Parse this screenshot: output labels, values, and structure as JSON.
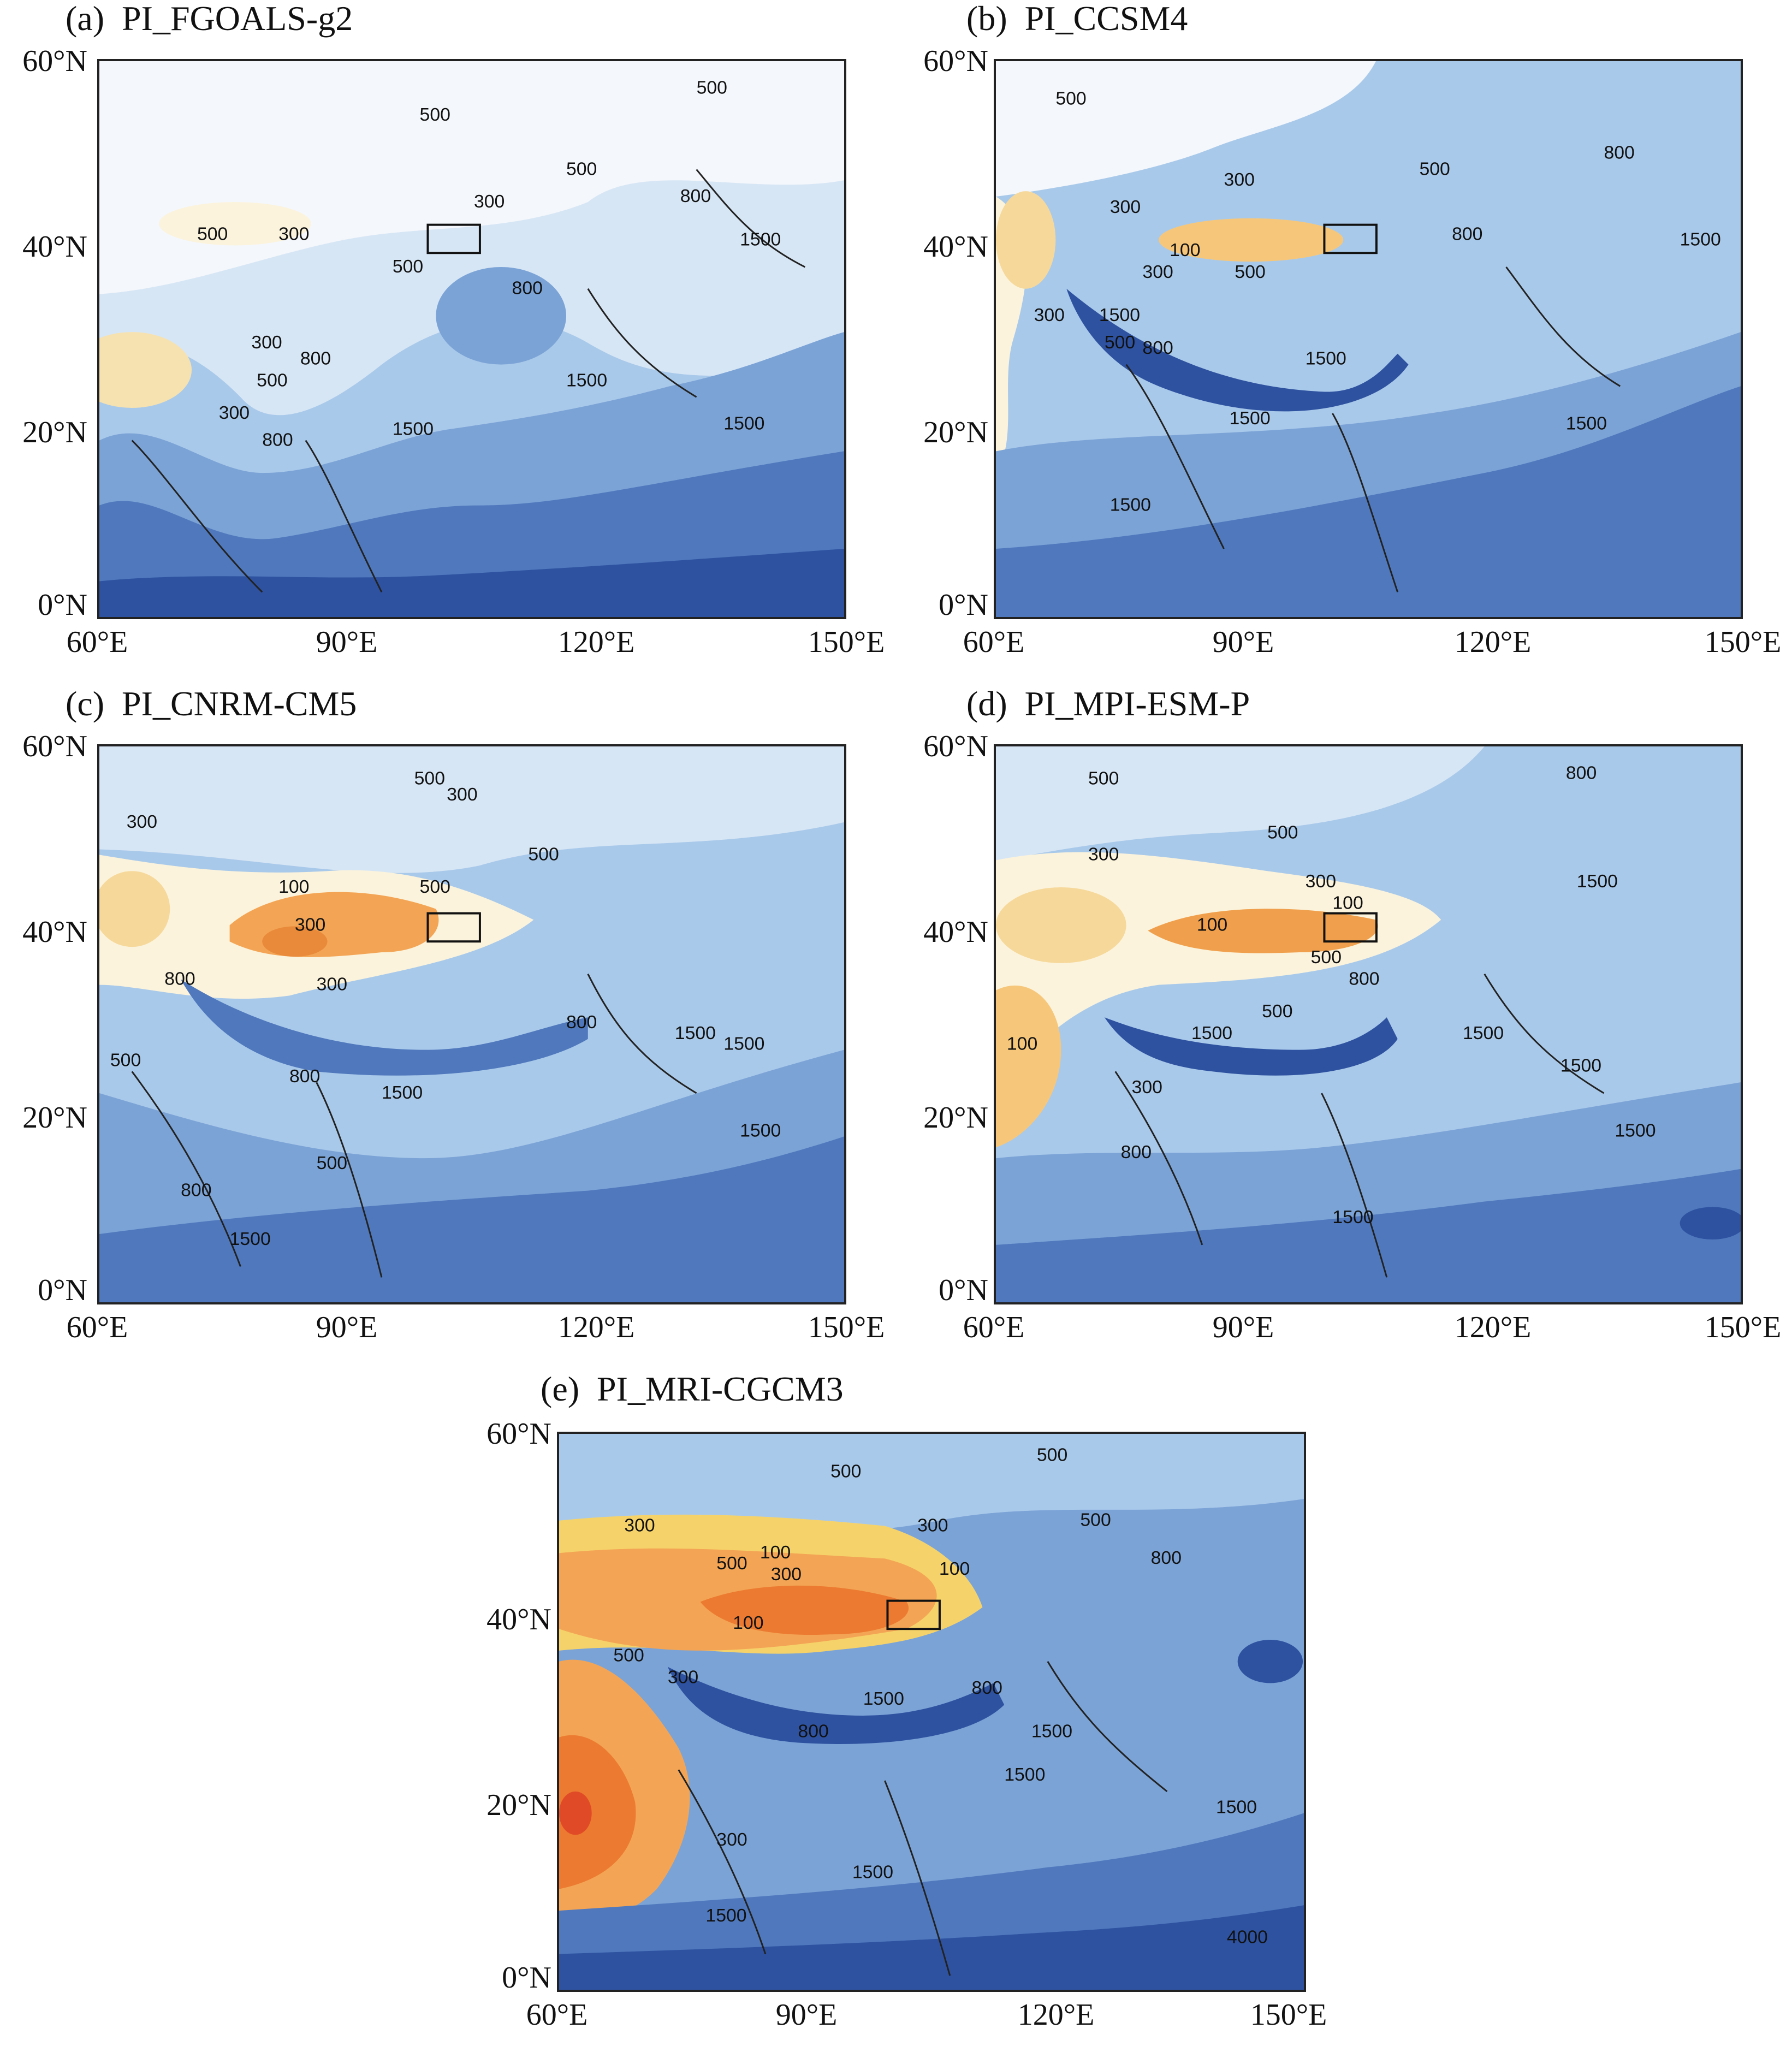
{
  "lat_ticks": [
    "60°N",
    "40°N",
    "20°N",
    "0°N"
  ],
  "lon_ticks": [
    "60°E",
    "90°E",
    "120°E",
    "150°E"
  ],
  "colors": {
    "very_low": "#e04a26",
    "low": "#f08a3a",
    "low_mid": "#f6c77a",
    "near_white": "#fbf3dc",
    "white": "#f7f9fc",
    "pale_blue": "#d7e6f5",
    "light_blue": "#a9c9ea",
    "mid_blue": "#7ba3d6",
    "blue": "#4f78bd",
    "dark_blue": "#2e52a0",
    "navy": "#1c3a86"
  },
  "panels": [
    {
      "id": "a",
      "title": "(a)  PI_FGOALS-g2",
      "contour_labels": [
        "500",
        "500",
        "500",
        "300",
        "300",
        "500",
        "800",
        "800",
        "300",
        "500",
        "800",
        "1500",
        "1500",
        "1500",
        "800",
        "1500",
        "500",
        "300"
      ]
    },
    {
      "id": "b",
      "title": "(b)  PI_CCSM4",
      "contour_labels": [
        "500",
        "300",
        "500",
        "800",
        "300",
        "100",
        "500",
        "800",
        "300",
        "1500",
        "800",
        "1500",
        "1500",
        "1500",
        "1500",
        "500",
        "300",
        "1500"
      ]
    },
    {
      "id": "c",
      "title": "(c)  PI_CNRM-CM5",
      "contour_labels": [
        "300",
        "500",
        "300",
        "100",
        "300",
        "500",
        "300",
        "500",
        "800",
        "1500",
        "800",
        "800",
        "1500",
        "1500",
        "500",
        "500",
        "800",
        "1500",
        "1500"
      ]
    },
    {
      "id": "d",
      "title": "(d)  PI_MPI-ESM-P",
      "contour_labels": [
        "500",
        "800",
        "300",
        "500",
        "300",
        "100",
        "100",
        "500",
        "800",
        "1500",
        "1500",
        "100",
        "300",
        "500",
        "800",
        "1500",
        "1500",
        "1500",
        "1500"
      ]
    },
    {
      "id": "e",
      "title": "(e)  PI_MRI-CGCM3",
      "contour_labels": [
        "500",
        "500",
        "500",
        "300",
        "300",
        "100",
        "100",
        "300",
        "500",
        "800",
        "800",
        "1500",
        "1500",
        "1500",
        "100",
        "300",
        "500",
        "800",
        "1500",
        "1500",
        "4000",
        "300",
        "1500"
      ]
    }
  ]
}
